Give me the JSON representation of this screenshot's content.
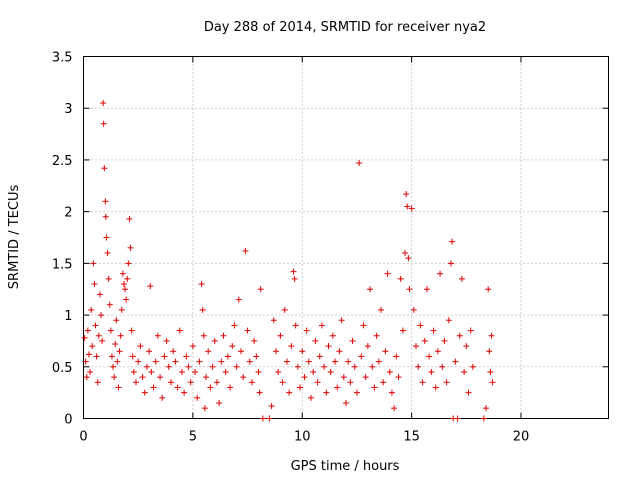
{
  "chart_data": {
    "type": "scatter",
    "title": "Day 288 of 2014, SRMTID for receiver nya2",
    "xlabel": "GPS time / hours",
    "ylabel": "SRMTID / TECUs",
    "xlim": [
      0,
      24
    ],
    "ylim": [
      0,
      3.5
    ],
    "xticks": [
      0,
      5,
      10,
      15,
      20
    ],
    "xtick_labels": [
      "0",
      "5",
      "10",
      "15",
      "20"
    ],
    "yticks": [
      0,
      0.5,
      1,
      1.5,
      2,
      2.5,
      3,
      3.5
    ],
    "ytick_labels": [
      "0",
      "0.5",
      "1",
      "1.5",
      "2",
      "2.5",
      "3",
      "3.5"
    ],
    "grid": true,
    "marker": "plus",
    "color": "#e00000",
    "series": [
      {
        "name": "SRMTID",
        "points": [
          [
            0.05,
            0.78
          ],
          [
            0.1,
            0.55
          ],
          [
            0.15,
            0.4
          ],
          [
            0.2,
            0.85
          ],
          [
            0.25,
            0.62
          ],
          [
            0.3,
            0.45
          ],
          [
            0.35,
            1.05
          ],
          [
            0.4,
            0.7
          ],
          [
            0.45,
            1.5
          ],
          [
            0.5,
            1.3
          ],
          [
            0.55,
            0.9
          ],
          [
            0.6,
            0.6
          ],
          [
            0.65,
            0.35
          ],
          [
            0.7,
            0.8
          ],
          [
            0.75,
            1.2
          ],
          [
            0.8,
            1.0
          ],
          [
            0.85,
            0.75
          ],
          [
            0.9,
            3.05
          ],
          [
            0.92,
            2.85
          ],
          [
            0.95,
            2.42
          ],
          [
            1.0,
            2.1
          ],
          [
            1.02,
            1.95
          ],
          [
            1.05,
            1.75
          ],
          [
            1.1,
            1.6
          ],
          [
            1.15,
            1.35
          ],
          [
            1.2,
            1.1
          ],
          [
            1.25,
            0.85
          ],
          [
            1.3,
            0.6
          ],
          [
            1.35,
            0.5
          ],
          [
            1.4,
            0.4
          ],
          [
            1.45,
            0.72
          ],
          [
            1.5,
            0.95
          ],
          [
            1.55,
            0.55
          ],
          [
            1.6,
            0.3
          ],
          [
            1.65,
            0.65
          ],
          [
            1.7,
            0.8
          ],
          [
            1.75,
            1.05
          ],
          [
            1.8,
            1.4
          ],
          [
            1.85,
            1.3
          ],
          [
            1.9,
            1.25
          ],
          [
            1.95,
            1.15
          ],
          [
            2.0,
            1.35
          ],
          [
            2.05,
            1.5
          ],
          [
            2.1,
            1.93
          ],
          [
            2.15,
            1.65
          ],
          [
            2.2,
            0.85
          ],
          [
            2.25,
            0.6
          ],
          [
            2.3,
            0.45
          ],
          [
            2.4,
            0.35
          ],
          [
            2.5,
            0.55
          ],
          [
            2.6,
            0.7
          ],
          [
            2.7,
            0.4
          ],
          [
            2.8,
            0.25
          ],
          [
            2.9,
            0.5
          ],
          [
            3.0,
            0.65
          ],
          [
            3.05,
            1.28
          ],
          [
            3.1,
            0.45
          ],
          [
            3.2,
            0.3
          ],
          [
            3.3,
            0.55
          ],
          [
            3.4,
            0.8
          ],
          [
            3.5,
            0.4
          ],
          [
            3.6,
            0.2
          ],
          [
            3.7,
            0.6
          ],
          [
            3.8,
            0.75
          ],
          [
            3.9,
            0.5
          ],
          [
            4.0,
            0.35
          ],
          [
            4.1,
            0.65
          ],
          [
            4.2,
            0.55
          ],
          [
            4.3,
            0.3
          ],
          [
            4.4,
            0.85
          ],
          [
            4.5,
            0.45
          ],
          [
            4.6,
            0.25
          ],
          [
            4.7,
            0.6
          ],
          [
            4.8,
            0.5
          ],
          [
            4.9,
            0.35
          ],
          [
            5.0,
            0.7
          ],
          [
            5.1,
            0.45
          ],
          [
            5.2,
            0.2
          ],
          [
            5.3,
            0.55
          ],
          [
            5.4,
            1.3
          ],
          [
            5.45,
            1.05
          ],
          [
            5.5,
            0.8
          ],
          [
            5.55,
            0.1
          ],
          [
            5.6,
            0.4
          ],
          [
            5.7,
            0.65
          ],
          [
            5.8,
            0.3
          ],
          [
            5.9,
            0.5
          ],
          [
            6.0,
            0.75
          ],
          [
            6.1,
            0.35
          ],
          [
            6.2,
            0.15
          ],
          [
            6.3,
            0.55
          ],
          [
            6.4,
            0.8
          ],
          [
            6.5,
            0.45
          ],
          [
            6.6,
            0.6
          ],
          [
            6.7,
            0.3
          ],
          [
            6.8,
            0.7
          ],
          [
            6.9,
            0.9
          ],
          [
            7.0,
            0.5
          ],
          [
            7.1,
            1.15
          ],
          [
            7.2,
            0.65
          ],
          [
            7.3,
            0.4
          ],
          [
            7.4,
            1.62
          ],
          [
            7.5,
            0.85
          ],
          [
            7.6,
            0.55
          ],
          [
            7.7,
            0.35
          ],
          [
            7.8,
            0.75
          ],
          [
            7.9,
            0.6
          ],
          [
            8.0,
            0.45
          ],
          [
            8.05,
            0.25
          ],
          [
            8.1,
            1.25
          ],
          [
            8.2,
            0.0
          ],
          [
            8.5,
            0.0
          ],
          [
            8.6,
            0.12
          ],
          [
            8.7,
            0.95
          ],
          [
            8.8,
            0.65
          ],
          [
            8.9,
            0.45
          ],
          [
            9.0,
            0.8
          ],
          [
            9.1,
            0.35
          ],
          [
            9.2,
            1.05
          ],
          [
            9.3,
            0.55
          ],
          [
            9.4,
            0.25
          ],
          [
            9.5,
            0.7
          ],
          [
            9.6,
            1.42
          ],
          [
            9.65,
            1.35
          ],
          [
            9.7,
            0.9
          ],
          [
            9.8,
            0.5
          ],
          [
            9.9,
            0.3
          ],
          [
            10.0,
            0.65
          ],
          [
            10.1,
            0.4
          ],
          [
            10.2,
            0.85
          ],
          [
            10.3,
            0.55
          ],
          [
            10.4,
            0.2
          ],
          [
            10.5,
            0.45
          ],
          [
            10.6,
            0.75
          ],
          [
            10.7,
            0.35
          ],
          [
            10.8,
            0.6
          ],
          [
            10.9,
            0.9
          ],
          [
            11.0,
            0.5
          ],
          [
            11.1,
            0.25
          ],
          [
            11.2,
            0.7
          ],
          [
            11.3,
            0.45
          ],
          [
            11.4,
            0.8
          ],
          [
            11.5,
            0.55
          ],
          [
            11.6,
            0.3
          ],
          [
            11.7,
            0.65
          ],
          [
            11.8,
            0.95
          ],
          [
            11.9,
            0.4
          ],
          [
            12.0,
            0.15
          ],
          [
            12.1,
            0.55
          ],
          [
            12.2,
            0.35
          ],
          [
            12.3,
            0.75
          ],
          [
            12.4,
            0.5
          ],
          [
            12.5,
            0.25
          ],
          [
            12.6,
            2.47
          ],
          [
            12.7,
            0.6
          ],
          [
            12.8,
            0.9
          ],
          [
            12.9,
            0.4
          ],
          [
            13.0,
            0.7
          ],
          [
            13.1,
            1.25
          ],
          [
            13.2,
            0.5
          ],
          [
            13.3,
            0.3
          ],
          [
            13.4,
            0.8
          ],
          [
            13.5,
            0.55
          ],
          [
            13.6,
            1.05
          ],
          [
            13.7,
            0.35
          ],
          [
            13.8,
            0.65
          ],
          [
            13.9,
            1.4
          ],
          [
            14.0,
            0.45
          ],
          [
            14.1,
            0.25
          ],
          [
            14.2,
            0.1
          ],
          [
            14.3,
            0.6
          ],
          [
            14.4,
            0.4
          ],
          [
            14.5,
            1.35
          ],
          [
            14.6,
            0.85
          ],
          [
            14.7,
            1.6
          ],
          [
            14.75,
            2.17
          ],
          [
            14.8,
            2.05
          ],
          [
            14.85,
            1.55
          ],
          [
            14.9,
            1.25
          ],
          [
            15.0,
            2.03
          ],
          [
            15.1,
            1.05
          ],
          [
            15.2,
            0.7
          ],
          [
            15.3,
            0.5
          ],
          [
            15.4,
            0.9
          ],
          [
            15.5,
            0.35
          ],
          [
            15.6,
            0.75
          ],
          [
            15.7,
            1.25
          ],
          [
            15.8,
            0.6
          ],
          [
            15.9,
            0.45
          ],
          [
            16.0,
            0.85
          ],
          [
            16.1,
            0.3
          ],
          [
            16.2,
            0.65
          ],
          [
            16.3,
            1.4
          ],
          [
            16.4,
            0.5
          ],
          [
            16.5,
            0.75
          ],
          [
            16.6,
            0.35
          ],
          [
            16.7,
            0.95
          ],
          [
            16.8,
            1.5
          ],
          [
            16.85,
            1.71
          ],
          [
            16.9,
            0.0
          ],
          [
            17.0,
            0.55
          ],
          [
            17.1,
            0.0
          ],
          [
            17.2,
            0.8
          ],
          [
            17.3,
            1.35
          ],
          [
            17.4,
            0.45
          ],
          [
            17.5,
            0.7
          ],
          [
            17.6,
            0.25
          ],
          [
            17.7,
            0.85
          ],
          [
            17.8,
            0.5
          ],
          [
            18.3,
            0.0
          ],
          [
            18.4,
            0.1
          ],
          [
            18.5,
            1.25
          ],
          [
            18.55,
            0.65
          ],
          [
            18.6,
            0.45
          ],
          [
            18.65,
            0.8
          ],
          [
            18.7,
            0.35
          ]
        ]
      }
    ]
  }
}
